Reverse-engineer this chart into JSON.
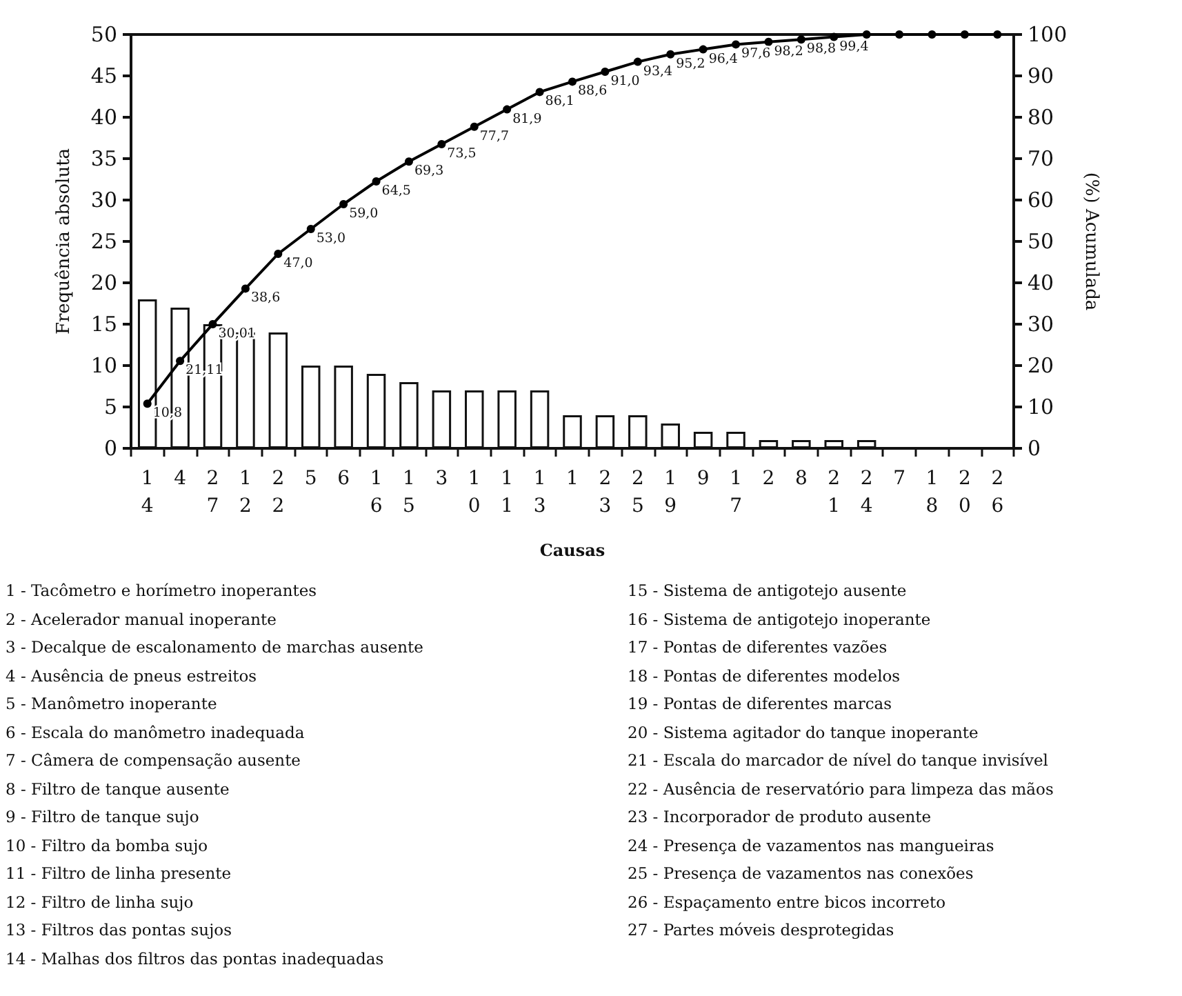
{
  "chart_data": {
    "type": "bar",
    "xlabel": "Causas",
    "ylabel": "Frequência absoluta",
    "y2label": "(%) Acumulada",
    "categories": [
      "14",
      "4",
      "27",
      "12",
      "22",
      "5",
      "6",
      "16",
      "15",
      "3",
      "10",
      "11",
      "13",
      "1",
      "23",
      "25",
      "19",
      "9",
      "17",
      "2",
      "8",
      "21",
      "24",
      "7",
      "18",
      "20",
      "26"
    ],
    "series": [
      {
        "color": "#ffffff",
        "values": [
          18,
          17,
          15,
          14,
          14,
          10,
          10,
          9,
          8,
          7,
          7,
          7,
          7,
          4,
          4,
          4,
          3,
          2,
          2,
          1,
          1,
          1,
          1,
          0,
          0,
          0,
          0
        ]
      },
      {
        "type": "line",
        "axis": "y2",
        "color": "#000000",
        "marker": "circle",
        "values": [
          10.8,
          21.11,
          30.01,
          38.6,
          47.0,
          53.0,
          59.0,
          64.5,
          69.3,
          73.5,
          77.7,
          81.9,
          86.1,
          88.6,
          91.0,
          93.4,
          95.2,
          96.4,
          97.6,
          98.2,
          98.8,
          99.4,
          100,
          100,
          100,
          100,
          100
        ],
        "value_labels": [
          "10,8",
          "21,11",
          "30,01",
          "38,6",
          "47,0",
          "53,0",
          "59,0",
          "64,5",
          "69,3",
          "73,5",
          "77,7",
          "81,9",
          "86,1",
          "88,6",
          "91,0",
          "93,4",
          "95,2",
          "96,4",
          "97,6",
          "98,2",
          "98,8",
          "99,4",
          null,
          null,
          null,
          null,
          null
        ]
      }
    ],
    "ylim": [
      0,
      50
    ],
    "yticks": [
      0,
      5,
      10,
      15,
      20,
      25,
      30,
      35,
      40,
      45,
      50
    ],
    "y2lim": [
      0,
      100
    ],
    "y2ticks": [
      0,
      10,
      20,
      30,
      40,
      50,
      60,
      70,
      80,
      90,
      100
    ],
    "grid": false,
    "annotations": [
      "1 - Tacômetro e horímetro inoperantes",
      "2 - Acelerador manual inoperante",
      "3 - Decalque de escalonamento de marchas ausente",
      "4 - Ausência de pneus estreitos",
      "5 - Manômetro inoperante",
      "6 - Escala do manômetro inadequada",
      "7 - Câmera de compensação ausente",
      "8 - Filtro de tanque ausente",
      "9 - Filtro de tanque sujo",
      "10 - Filtro da bomba sujo",
      "11 - Filtro de linha presente",
      "12 - Filtro de linha sujo",
      "13 - Filtros das pontas sujos",
      "14 - Malhas dos filtros das pontas inadequadas",
      "15 - Sistema de antigotejo ausente",
      "16 - Sistema de antigotejo inoperante",
      "17 - Pontas de diferentes vazões",
      "18 - Pontas de diferentes modelos",
      "19 - Pontas de diferentes marcas",
      "20 - Sistema agitador do tanque inoperante",
      "21 - Escala do marcador de nível do tanque invisível",
      "22 - Ausência de reservatório para limpeza das mãos",
      "23 - Incorporador de produto ausente",
      "24 - Presença de vazamentos nas mangueiras",
      "25 - Presença de vazamentos nas conexões",
      "26 - Espaçamento entre bicos incorreto",
      "27 - Partes móveis desprotegidas"
    ]
  }
}
